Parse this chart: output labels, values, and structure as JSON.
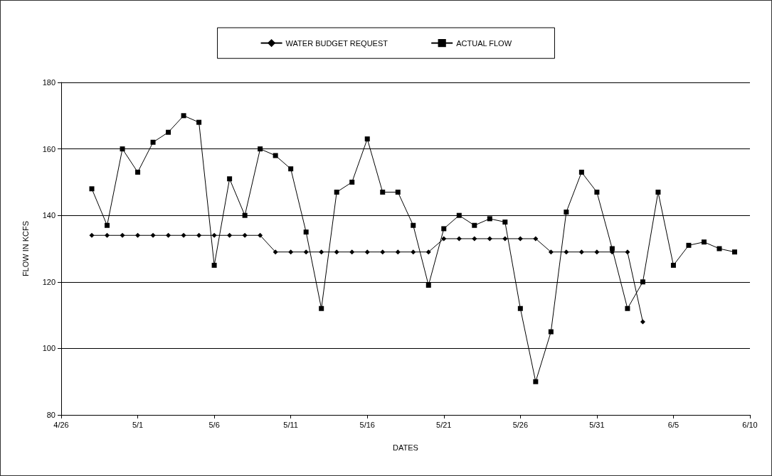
{
  "chart_data": {
    "type": "line",
    "xlabel": "DATES",
    "ylabel": "FLOW IN KCFS",
    "xlim": [
      "--04-26",
      "--06-10"
    ],
    "xticks": [
      {
        "value": "--04-26",
        "label": "4/26"
      },
      {
        "value": "--05-01",
        "label": "5/1"
      },
      {
        "value": "--05-06",
        "label": "5/6"
      },
      {
        "value": "--05-11",
        "label": "5/11"
      },
      {
        "value": "--05-16",
        "label": "5/16"
      },
      {
        "value": "--05-21",
        "label": "5/21"
      },
      {
        "value": "--05-26",
        "label": "5/26"
      },
      {
        "value": "--05-31",
        "label": "5/31"
      },
      {
        "value": "--06-05",
        "label": "6/5"
      },
      {
        "value": "--06-10",
        "label": "6/10"
      }
    ],
    "ylim": [
      80,
      180
    ],
    "yticks": [
      80,
      100,
      120,
      140,
      160,
      180
    ],
    "grid": "y",
    "legend": "top",
    "series": [
      {
        "name": "WATER BUDGET REQUEST",
        "color": "#000000",
        "marker": "diamond",
        "x": [
          "--04-28",
          "--04-29",
          "--04-30",
          "--05-01",
          "--05-02",
          "--05-03",
          "--05-04",
          "--05-05",
          "--05-06",
          "--05-07",
          "--05-08",
          "--05-09",
          "--05-10",
          "--05-11",
          "--05-12",
          "--05-13",
          "--05-14",
          "--05-15",
          "--05-16",
          "--05-17",
          "--05-18",
          "--05-19",
          "--05-20",
          "--05-21",
          "--05-22",
          "--05-23",
          "--05-24",
          "--05-25",
          "--05-26",
          "--05-27",
          "--05-28",
          "--05-29",
          "--05-30",
          "--05-31",
          "--06-01",
          "--06-02",
          "--06-03"
        ],
        "values": [
          134,
          134,
          134,
          134,
          134,
          134,
          134,
          134,
          134,
          134,
          134,
          134,
          129,
          129,
          129,
          129,
          129,
          129,
          129,
          129,
          129,
          129,
          129,
          133,
          133,
          133,
          133,
          133,
          133,
          133,
          129,
          129,
          129,
          129,
          129,
          129,
          108
        ]
      },
      {
        "name": "ACTUAL FLOW",
        "color": "#000000",
        "marker": "square",
        "x": [
          "--04-28",
          "--04-29",
          "--04-30",
          "--05-01",
          "--05-02",
          "--05-03",
          "--05-04",
          "--05-05",
          "--05-06",
          "--05-07",
          "--05-08",
          "--05-09",
          "--05-10",
          "--05-11",
          "--05-12",
          "--05-13",
          "--05-14",
          "--05-15",
          "--05-16",
          "--05-17",
          "--05-18",
          "--05-19",
          "--05-20",
          "--05-21",
          "--05-22",
          "--05-23",
          "--05-24",
          "--05-25",
          "--05-26",
          "--05-27",
          "--05-28",
          "--05-29",
          "--05-30",
          "--05-31",
          "--06-01",
          "--06-02",
          "--06-03",
          "--06-04",
          "--06-05",
          "--06-06",
          "--06-07",
          "--06-08",
          "--06-09"
        ],
        "values": [
          148,
          137,
          160,
          153,
          162,
          165,
          170,
          168,
          125,
          151,
          140,
          160,
          158,
          154,
          135,
          112,
          147,
          150,
          163,
          147,
          147,
          137,
          119,
          136,
          140,
          137,
          139,
          138,
          112,
          90,
          105,
          141,
          153,
          147,
          130,
          112,
          120,
          147,
          125,
          131,
          132,
          130,
          129
        ]
      }
    ]
  }
}
